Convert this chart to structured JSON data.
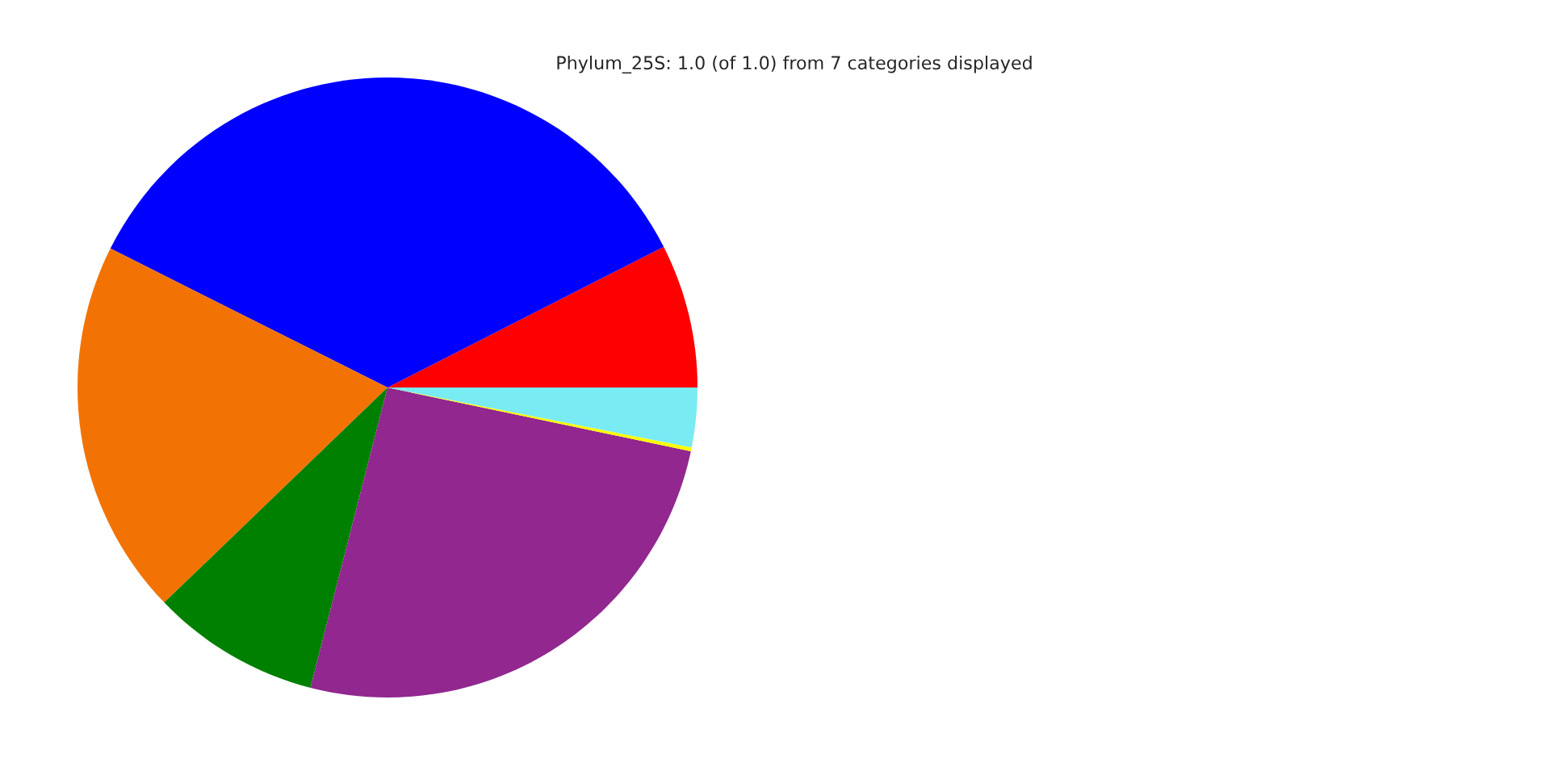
{
  "chart_data": {
    "type": "pie",
    "title": "Phylum_25S: 1.0 (of 1.0) from 7 categories displayed",
    "categories": [
      null,
      null,
      null,
      null,
      null,
      null,
      null
    ],
    "values": [
      7.5,
      35.1,
      19.6,
      8.8,
      25.7,
      0.2,
      3.1
    ],
    "colors": [
      "#ff0000",
      "#0000ff",
      "#f27304",
      "#008000",
      "#91278f",
      "#ffff00",
      "#79ebf2"
    ]
  }
}
